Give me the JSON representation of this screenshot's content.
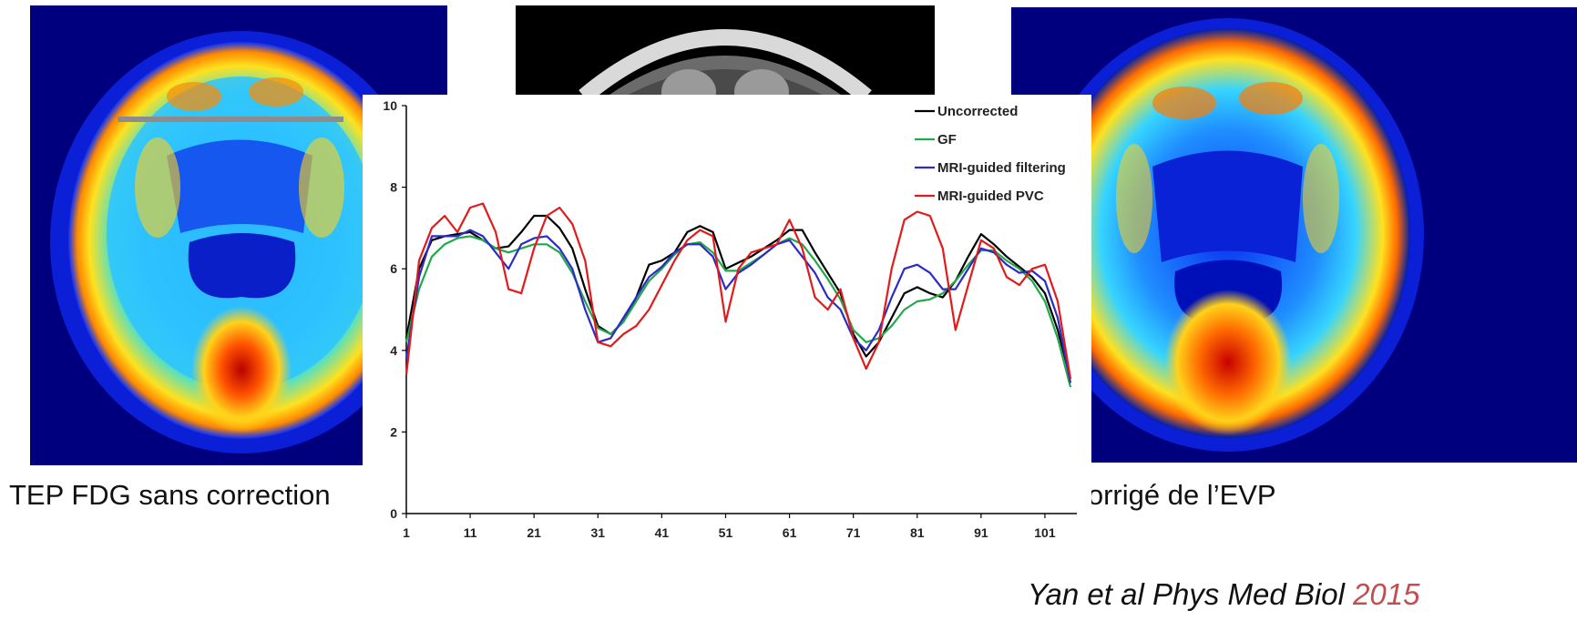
{
  "captions": {
    "left": "TEP FDG sans correction",
    "right": "TEP corrigé de l’EVP"
  },
  "citation": {
    "text": "Yan et al Phys Med Biol ",
    "year": "2015"
  },
  "chart_data": {
    "type": "line",
    "title": "",
    "xlabel": "",
    "ylabel": "",
    "xlim": [
      1,
      106
    ],
    "ylim": [
      0,
      10
    ],
    "xticks": [
      1,
      11,
      21,
      31,
      41,
      51,
      61,
      71,
      81,
      91,
      101
    ],
    "yticks": [
      0,
      2,
      4,
      6,
      8,
      10
    ],
    "grid": false,
    "legend_position": "top-right",
    "x": [
      1,
      3,
      5,
      7,
      9,
      11,
      13,
      15,
      17,
      19,
      21,
      23,
      25,
      27,
      29,
      31,
      33,
      35,
      37,
      39,
      41,
      43,
      45,
      47,
      49,
      51,
      53,
      55,
      57,
      59,
      61,
      63,
      65,
      67,
      69,
      71,
      73,
      75,
      77,
      79,
      81,
      83,
      85,
      87,
      89,
      91,
      93,
      95,
      97,
      99,
      101,
      103,
      105
    ],
    "series": [
      {
        "name": "Uncorrected",
        "color": "#000000",
        "values": [
          4.3,
          6.0,
          6.7,
          6.8,
          6.85,
          6.9,
          6.7,
          6.5,
          6.55,
          6.9,
          7.3,
          7.3,
          7.0,
          6.5,
          5.5,
          4.6,
          4.4,
          4.7,
          5.3,
          6.1,
          6.2,
          6.4,
          6.9,
          7.05,
          6.9,
          6.0,
          6.15,
          6.3,
          6.5,
          6.7,
          6.95,
          6.95,
          6.4,
          5.9,
          5.4,
          4.4,
          3.85,
          4.2,
          4.8,
          5.4,
          5.55,
          5.4,
          5.3,
          5.7,
          6.3,
          6.85,
          6.6,
          6.3,
          6.05,
          5.8,
          5.4,
          4.5,
          3.3
        ]
      },
      {
        "name": "GF",
        "color": "#22a84a",
        "values": [
          4.2,
          5.5,
          6.3,
          6.6,
          6.75,
          6.8,
          6.7,
          6.5,
          6.4,
          6.5,
          6.6,
          6.6,
          6.4,
          5.9,
          5.2,
          4.55,
          4.4,
          4.7,
          5.2,
          5.7,
          6.0,
          6.35,
          6.6,
          6.65,
          6.4,
          5.95,
          5.95,
          6.15,
          6.35,
          6.6,
          6.75,
          6.6,
          6.2,
          5.75,
          5.25,
          4.5,
          4.2,
          4.3,
          4.6,
          5.0,
          5.2,
          5.25,
          5.4,
          5.7,
          6.1,
          6.45,
          6.45,
          6.2,
          6.0,
          5.7,
          5.2,
          4.3,
          3.1
        ]
      },
      {
        "name": "MRI-guided filtering",
        "color": "#2b2bc8",
        "values": [
          3.8,
          5.8,
          6.8,
          6.8,
          6.8,
          6.95,
          6.8,
          6.4,
          6.0,
          6.6,
          6.75,
          6.8,
          6.5,
          6.0,
          5.0,
          4.2,
          4.3,
          4.8,
          5.3,
          5.8,
          6.05,
          6.4,
          6.6,
          6.6,
          6.3,
          5.5,
          5.9,
          6.1,
          6.35,
          6.6,
          6.7,
          6.3,
          5.9,
          5.3,
          5.0,
          4.3,
          4.0,
          4.5,
          5.3,
          6.0,
          6.1,
          5.9,
          5.5,
          5.5,
          6.0,
          6.5,
          6.4,
          6.1,
          5.9,
          5.95,
          5.7,
          4.8,
          3.2
        ]
      },
      {
        "name": "MRI-guided PVC",
        "color": "#e31a1a",
        "values": [
          3.4,
          6.2,
          7.0,
          7.3,
          6.9,
          7.5,
          7.6,
          6.9,
          5.5,
          5.4,
          6.5,
          7.3,
          7.5,
          7.1,
          6.2,
          4.2,
          4.1,
          4.4,
          4.6,
          5.0,
          5.6,
          6.2,
          6.7,
          6.95,
          6.8,
          4.7,
          6.0,
          6.4,
          6.5,
          6.6,
          7.2,
          6.5,
          5.3,
          5.0,
          5.5,
          4.3,
          3.55,
          4.2,
          6.0,
          7.2,
          7.4,
          7.3,
          6.5,
          4.5,
          5.6,
          6.7,
          6.5,
          5.8,
          5.6,
          6.0,
          6.1,
          5.2,
          3.3
        ]
      }
    ]
  }
}
